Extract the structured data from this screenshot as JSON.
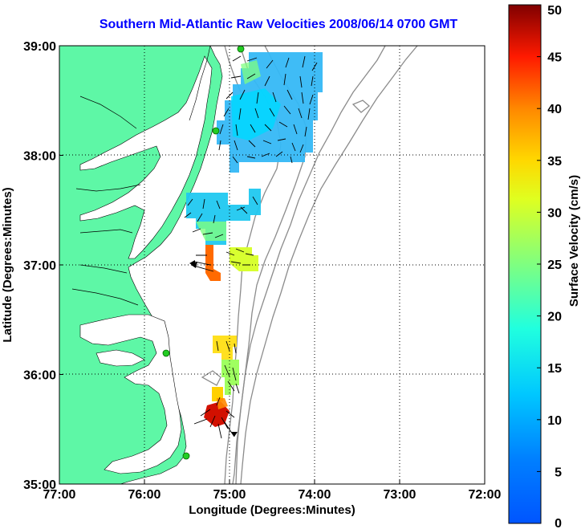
{
  "title": "Southern Mid-Atlantic Raw Velocities 2008/06/14 0700 GMT",
  "x_axis": {
    "label": "Longitude (Degrees:Minutes)",
    "ticks": [
      {
        "value": -77,
        "label": "77:00"
      },
      {
        "value": -76,
        "label": "76:00"
      },
      {
        "value": -75,
        "label": "75:00"
      },
      {
        "value": -74,
        "label": "74:00"
      },
      {
        "value": -73,
        "label": "73:00"
      },
      {
        "value": -72,
        "label": "72:00"
      }
    ],
    "range": [
      -77,
      -72
    ]
  },
  "y_axis": {
    "label": "Latitude (Degrees:Minutes)",
    "ticks": [
      {
        "value": 35,
        "label": "35:00"
      },
      {
        "value": 36,
        "label": "36:00"
      },
      {
        "value": 37,
        "label": "37:00"
      },
      {
        "value": 38,
        "label": "38:00"
      },
      {
        "value": 39,
        "label": "39:00"
      }
    ],
    "range": [
      35,
      39
    ]
  },
  "colorbar": {
    "label": "Surface Velocity (cm/s)",
    "ticks": [
      "0",
      "5",
      "10",
      "15",
      "20",
      "25",
      "30",
      "35",
      "40",
      "45",
      "50"
    ],
    "range": [
      0,
      50
    ],
    "colormap": "jet"
  },
  "colors": {
    "land": "#5ef7a6",
    "water": "#ffffff",
    "bathymetry": "#8c8c8c",
    "title": "#0000ff",
    "station": "#22cc22"
  }
}
